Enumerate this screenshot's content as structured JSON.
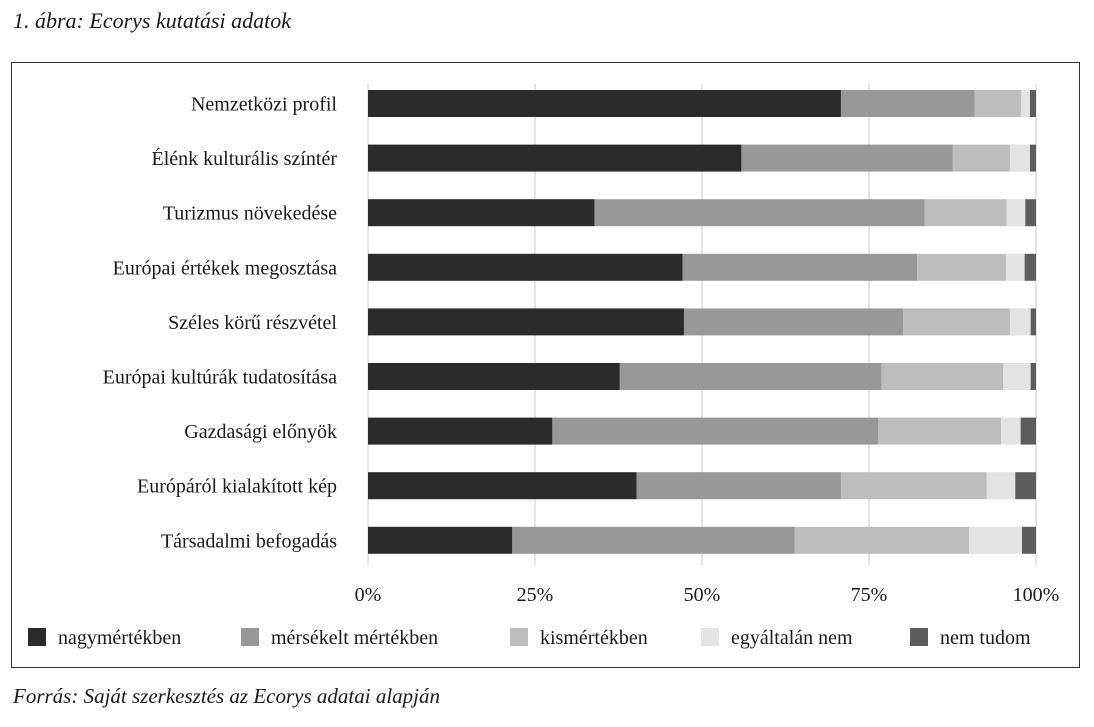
{
  "figure": {
    "caption": "1. ábra: Ecorys kutatási adatok",
    "source": "Forrás: Saját szerkesztés az Ecorys adatai alapján"
  },
  "chart_data": {
    "type": "bar",
    "orientation": "horizontal",
    "stacked": "percent",
    "title": "",
    "xlabel": "",
    "ylabel": "",
    "xlim": [
      0,
      100
    ],
    "x_ticks": [
      "0%",
      "25%",
      "50%",
      "75%",
      "100%"
    ],
    "grid": true,
    "legend_position": "bottom",
    "categories": [
      "Nemzetközi profil",
      "Élénk kulturális színtér",
      "Turizmus növekedése",
      "Európai értékek megosztása",
      "Széles körű részvétel",
      "Európai kultúrák tudatosítása",
      "Gazdasági előnyök",
      "Európáról kialakított kép",
      "Társadalmi befogadás"
    ],
    "series": [
      {
        "name": "nagymértékben",
        "color": "#2b2b2b",
        "values": [
          70.8,
          55.9,
          33.9,
          47.1,
          47.3,
          37.7,
          27.6,
          40.2,
          21.6
        ]
      },
      {
        "name": "mérsékelt mértékben",
        "color": "#989898",
        "values": [
          20.0,
          31.6,
          49.4,
          35.1,
          32.8,
          39.2,
          48.8,
          30.6,
          42.3
        ]
      },
      {
        "name": "kismértékben",
        "color": "#bdbdbd",
        "values": [
          7.0,
          8.6,
          12.3,
          13.3,
          16.0,
          18.2,
          18.4,
          21.8,
          26.1
        ]
      },
      {
        "name": "egyáltalán nem",
        "color": "#e3e3e3",
        "values": [
          1.3,
          3.0,
          2.8,
          2.8,
          3.1,
          4.1,
          2.9,
          4.3,
          7.9
        ]
      },
      {
        "name": "nem tudom",
        "color": "#5d5d5d",
        "values": [
          0.9,
          0.9,
          1.6,
          1.7,
          0.8,
          0.8,
          2.3,
          3.1,
          2.1
        ]
      }
    ]
  }
}
